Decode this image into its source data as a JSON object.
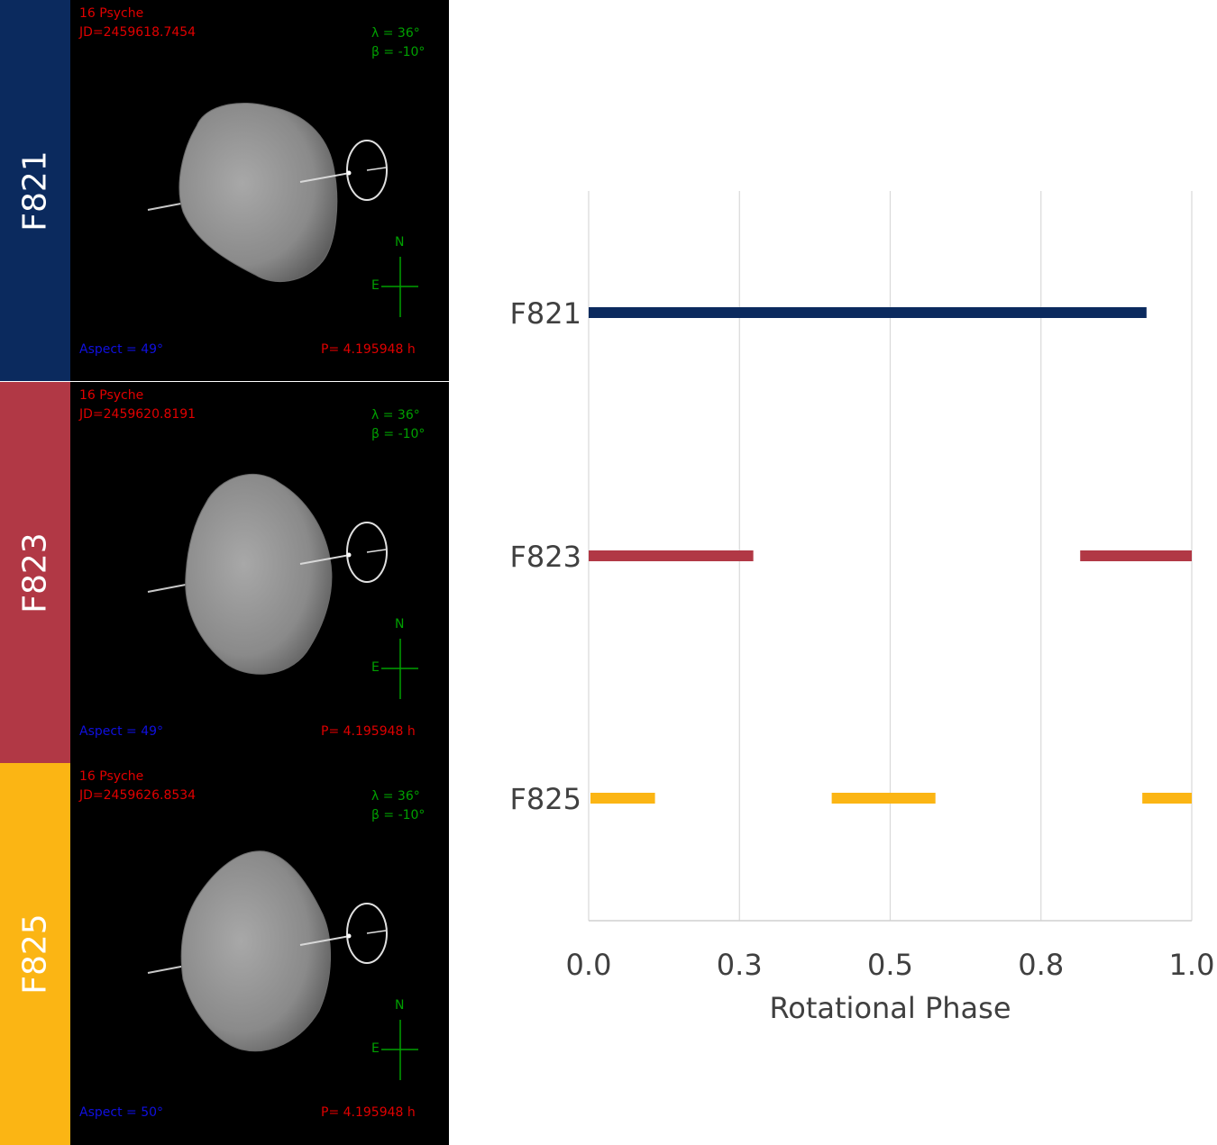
{
  "panels": [
    {
      "filter": "F821",
      "color": "#0b2a5e",
      "object": "16 Psyche",
      "jd": "JD=2459618.7454",
      "lambda": "λ =  36°",
      "beta": "β = -10°",
      "aspect": "Aspect = 49°",
      "period": "P= 4.195948 h",
      "compass_n": "N",
      "compass_e": "E"
    },
    {
      "filter": "F823",
      "color": "#b13845",
      "object": "16 Psyche",
      "jd": "JD=2459620.8191",
      "lambda": "λ =  36°",
      "beta": "β = -10°",
      "aspect": "Aspect = 49°",
      "period": "P= 4.195948 h",
      "compass_n": "N",
      "compass_e": "E"
    },
    {
      "filter": "F825",
      "color": "#fbb514",
      "object": "16 Psyche",
      "jd": "JD=2459626.8534",
      "lambda": "λ =  36°",
      "beta": "β = -10°",
      "aspect": "Aspect = 50°",
      "period": "P= 4.195948 h",
      "compass_n": "N",
      "compass_e": "E"
    }
  ],
  "chart_data": {
    "type": "bar",
    "orientation": "horizontal-ranges",
    "xlabel": "Rotational Phase",
    "xlim": [
      0,
      1
    ],
    "xticks": [
      0,
      0.25,
      0.5,
      0.75,
      1.0
    ],
    "xtick_labels": [
      "0.0",
      "0.3",
      "0.5",
      "0.8",
      "1.0"
    ],
    "grid": "vertical",
    "categories": [
      "F821",
      "F823",
      "F825"
    ],
    "series": [
      {
        "category": "F821",
        "color": "#0b2a5e",
        "ranges": [
          [
            0.0,
            0.925
          ]
        ]
      },
      {
        "category": "F823",
        "color": "#b13845",
        "ranges": [
          [
            0.0,
            0.273
          ],
          [
            0.815,
            1.0
          ]
        ]
      },
      {
        "category": "F825",
        "color": "#fbb514",
        "ranges": [
          [
            0.003,
            0.11
          ],
          [
            0.403,
            0.575
          ],
          [
            0.918,
            1.0
          ]
        ]
      }
    ]
  }
}
